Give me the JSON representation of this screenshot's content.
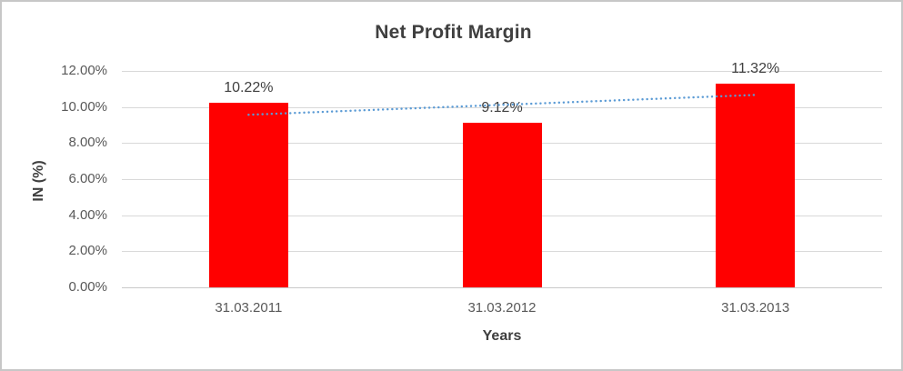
{
  "chart_data": {
    "type": "bar",
    "title": "Net Profit Margin",
    "categories": [
      "31.03.2011",
      "31.03.2012",
      "31.03.2013"
    ],
    "values": [
      10.22,
      9.12,
      11.32
    ],
    "data_labels": [
      "10.22%",
      "9.12%",
      "11.32%"
    ],
    "xlabel": "Years",
    "ylabel": "IN (%)",
    "ylim": [
      0,
      12
    ],
    "ytick_labels": [
      "0.00%",
      "2.00%",
      "4.00%",
      "6.00%",
      "8.00%",
      "10.00%",
      "12.00%"
    ],
    "grid": true,
    "legend": false,
    "bar_color": "#ff0000",
    "trendline": {
      "type": "linear",
      "style": "dotted",
      "color": "#5b9bd5",
      "start_value": 9.67,
      "end_value": 10.77
    },
    "grid_color": "#d9d9d9",
    "axis_text_color": "#595959",
    "title_color": "#3f3f3f"
  }
}
